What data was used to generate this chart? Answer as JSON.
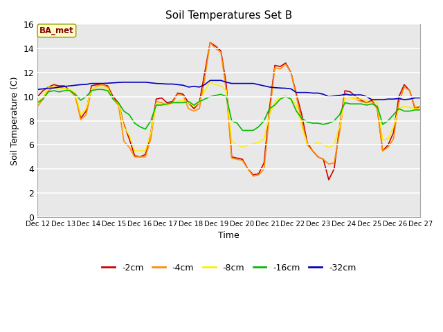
{
  "title": "Soil Temperatures Set B",
  "xlabel": "Time",
  "ylabel": "Soil Temperature (C)",
  "annotation_text": "BA_met",
  "annotation_color": "#8B0000",
  "annotation_bg": "#FFFFCC",
  "ylim": [
    0,
    16
  ],
  "yticks": [
    0,
    2,
    4,
    6,
    8,
    10,
    12,
    14,
    16
  ],
  "bg_color": "#E8E8E8",
  "colors": {
    "-2cm": "#CC0000",
    "-4cm": "#FF8C00",
    "-8cm": "#FFEE00",
    "-16cm": "#00BB00",
    "-32cm": "#0000BB"
  },
  "x_tick_labels": [
    "Dec 12",
    "Dec 13",
    "Dec 14",
    "Dec 15",
    "Dec 16",
    "Dec 17",
    "Dec 18",
    "Dec 19",
    "Dec 20",
    "Dec 21",
    "Dec 22",
    "Dec 23",
    "Dec 24",
    "Dec 25",
    "Dec 26",
    "Dec 27"
  ],
  "depth_2cm": [
    10.0,
    10.5,
    10.8,
    11.0,
    10.9,
    10.9,
    10.5,
    10.2,
    8.2,
    8.8,
    10.9,
    11.0,
    11.0,
    10.9,
    10.0,
    9.5,
    7.7,
    6.5,
    5.1,
    5.0,
    5.2,
    7.0,
    9.8,
    9.9,
    9.5,
    9.6,
    10.3,
    10.2,
    9.5,
    9.0,
    9.5,
    12.0,
    14.5,
    14.2,
    13.8,
    11.0,
    5.0,
    4.9,
    4.8,
    4.0,
    3.5,
    3.6,
    4.5,
    9.0,
    12.6,
    12.5,
    12.8,
    12.0,
    10.2,
    8.5,
    6.2,
    5.5,
    5.0,
    4.8,
    3.1,
    4.0,
    7.5,
    10.5,
    10.4,
    10.0,
    9.7,
    9.5,
    9.7,
    9.0,
    5.5,
    6.0,
    7.0,
    10.0,
    11.0,
    10.5,
    9.0,
    9.2
  ],
  "depth_4cm": [
    9.2,
    9.8,
    10.5,
    10.8,
    10.8,
    10.7,
    10.5,
    10.0,
    8.1,
    8.5,
    10.5,
    10.9,
    11.0,
    10.8,
    9.8,
    9.3,
    6.3,
    5.8,
    5.0,
    5.0,
    5.0,
    6.5,
    9.6,
    9.5,
    9.3,
    9.5,
    10.2,
    10.1,
    9.0,
    8.8,
    9.0,
    11.5,
    14.5,
    14.0,
    13.7,
    10.5,
    4.9,
    4.8,
    4.7,
    4.0,
    3.4,
    3.5,
    4.0,
    8.5,
    12.4,
    12.3,
    12.7,
    12.0,
    10.0,
    8.0,
    6.0,
    5.5,
    5.0,
    4.8,
    4.4,
    4.5,
    7.0,
    10.3,
    10.1,
    9.8,
    9.6,
    9.5,
    9.6,
    9.0,
    5.5,
    5.8,
    6.5,
    9.5,
    10.8,
    10.5,
    9.1,
    9.2
  ],
  "depth_8cm": [
    9.5,
    10.0,
    10.8,
    10.8,
    10.6,
    10.7,
    10.6,
    10.3,
    8.5,
    9.0,
    10.6,
    10.8,
    10.8,
    10.7,
    9.8,
    9.5,
    7.5,
    6.8,
    5.5,
    5.5,
    5.5,
    7.0,
    9.4,
    9.4,
    9.3,
    9.5,
    9.6,
    9.7,
    9.5,
    9.2,
    9.5,
    10.5,
    11.2,
    11.0,
    10.9,
    10.5,
    6.3,
    6.0,
    5.8,
    6.0,
    6.1,
    6.2,
    6.5,
    8.5,
    9.5,
    10.0,
    10.1,
    9.8,
    9.3,
    7.5,
    6.1,
    6.0,
    6.2,
    6.0,
    5.8,
    6.0,
    7.5,
    9.9,
    9.9,
    9.8,
    9.8,
    9.7,
    9.8,
    9.5,
    6.4,
    6.5,
    7.5,
    9.0,
    9.2,
    9.1,
    9.0,
    9.0
  ],
  "depth_16cm": [
    9.5,
    9.8,
    10.4,
    10.5,
    10.4,
    10.5,
    10.5,
    10.2,
    9.7,
    10.0,
    10.5,
    10.6,
    10.6,
    10.5,
    9.8,
    9.5,
    8.8,
    8.5,
    7.8,
    7.5,
    7.3,
    8.0,
    9.3,
    9.3,
    9.4,
    9.5,
    9.5,
    9.5,
    9.6,
    9.3,
    9.6,
    9.8,
    10.0,
    10.1,
    10.2,
    10.0,
    8.0,
    7.8,
    7.2,
    7.2,
    7.2,
    7.5,
    8.0,
    9.0,
    9.3,
    9.8,
    10.0,
    9.8,
    8.8,
    8.2,
    7.9,
    7.8,
    7.8,
    7.7,
    7.8,
    8.0,
    8.5,
    9.5,
    9.4,
    9.4,
    9.4,
    9.3,
    9.4,
    9.2,
    7.7,
    8.0,
    8.5,
    9.0,
    8.8,
    8.8,
    8.9,
    8.9
  ],
  "depth_32cm": [
    10.6,
    10.65,
    10.7,
    10.72,
    10.8,
    10.85,
    10.9,
    10.95,
    11.0,
    11.02,
    11.1,
    11.1,
    11.1,
    11.12,
    11.15,
    11.18,
    11.2,
    11.2,
    11.2,
    11.2,
    11.2,
    11.15,
    11.1,
    11.08,
    11.05,
    11.05,
    11.0,
    10.95,
    10.8,
    10.85,
    10.8,
    11.0,
    11.35,
    11.35,
    11.35,
    11.2,
    11.1,
    11.1,
    11.1,
    11.1,
    11.1,
    11.0,
    10.9,
    10.8,
    10.75,
    10.72,
    10.7,
    10.65,
    10.35,
    10.35,
    10.35,
    10.3,
    10.3,
    10.2,
    10.0,
    10.05,
    10.1,
    10.2,
    10.15,
    10.15,
    10.15,
    10.0,
    9.75,
    9.75,
    9.75,
    9.8,
    9.8,
    9.85,
    9.75,
    9.8,
    9.9,
    9.9
  ]
}
